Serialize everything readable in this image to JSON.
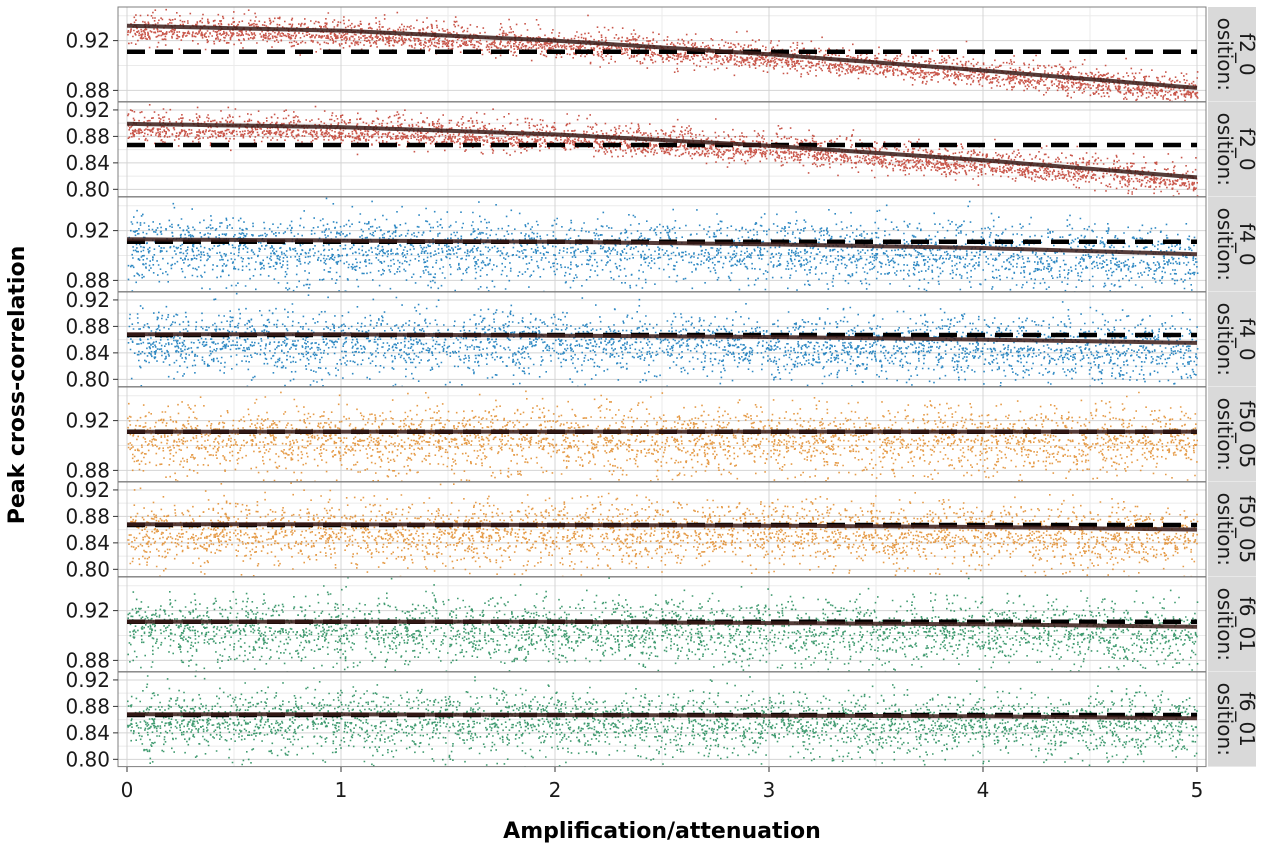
{
  "chart_data": {
    "type": "scatter",
    "xlabel": "Amplification/attenuation",
    "ylabel": "Peak cross-correlation",
    "xlim": [
      0,
      5
    ],
    "x_ticks": [
      "0",
      "1",
      "2",
      "3",
      "4",
      "5"
    ],
    "grid": true,
    "colors": {
      "red": "#c0392b",
      "blue": "#0a74b8",
      "orange": "#e08a28",
      "green": "#1e8a57"
    },
    "panels": [
      {
        "strip": "f2_0\nosition:",
        "ylim": [
          0.871,
          0.947
        ],
        "y_ticks": [
          "0.88",
          "0.92"
        ],
        "y_tick_values": [
          0.88,
          0.92
        ],
        "y_minor": [
          0.86,
          0.9,
          0.94
        ],
        "color": "red",
        "threshold": 0.911,
        "trend": [
          [
            0,
            0.932
          ],
          [
            1,
            0.928
          ],
          [
            2,
            0.92
          ],
          [
            3,
            0.909
          ],
          [
            4,
            0.896
          ],
          [
            5,
            0.882
          ]
        ],
        "spread": 0.006,
        "outlier_spread": 0.004
      },
      {
        "strip": "f2_0\nosition:",
        "ylim": [
          0.789,
          0.932
        ],
        "y_ticks": [
          "0.80",
          "0.84",
          "0.88",
          "0.92"
        ],
        "y_tick_values": [
          0.8,
          0.84,
          0.88,
          0.92
        ],
        "y_minor": [
          0.78,
          0.82,
          0.86,
          0.9,
          0.94
        ],
        "color": "red",
        "threshold": 0.867,
        "trend": [
          [
            0,
            0.899
          ],
          [
            1,
            0.894
          ],
          [
            2,
            0.883
          ],
          [
            3,
            0.866
          ],
          [
            4,
            0.844
          ],
          [
            5,
            0.818
          ]
        ],
        "spread": 0.012,
        "outlier_spread": 0.008
      },
      {
        "strip": "f4_0\nosition:",
        "ylim": [
          0.871,
          0.947
        ],
        "y_ticks": [
          "0.88",
          "0.92"
        ],
        "y_tick_values": [
          0.88,
          0.92
        ],
        "y_minor": [
          0.86,
          0.9,
          0.94
        ],
        "color": "blue",
        "threshold": 0.911,
        "trend": [
          [
            0,
            0.913
          ],
          [
            1,
            0.912
          ],
          [
            2,
            0.911
          ],
          [
            3,
            0.909
          ],
          [
            4,
            0.906
          ],
          [
            5,
            0.901
          ]
        ],
        "spread": 0.011,
        "outlier_spread": 0.018
      },
      {
        "strip": "f4_0\nosition:",
        "ylim": [
          0.789,
          0.932
        ],
        "y_ticks": [
          "0.80",
          "0.84",
          "0.88",
          "0.92"
        ],
        "y_tick_values": [
          0.8,
          0.84,
          0.88,
          0.92
        ],
        "y_minor": [
          0.78,
          0.82,
          0.86,
          0.9,
          0.94
        ],
        "color": "blue",
        "threshold": 0.867,
        "trend": [
          [
            0,
            0.868
          ],
          [
            1,
            0.868
          ],
          [
            2,
            0.866
          ],
          [
            3,
            0.864
          ],
          [
            4,
            0.86
          ],
          [
            5,
            0.855
          ]
        ],
        "spread": 0.02,
        "outlier_spread": 0.03
      },
      {
        "strip": "f50_05\nosition:",
        "ylim": [
          0.871,
          0.947
        ],
        "y_ticks": [
          "0.88",
          "0.92"
        ],
        "y_tick_values": [
          0.88,
          0.92
        ],
        "y_minor": [
          0.86,
          0.9,
          0.94
        ],
        "color": "orange",
        "threshold": 0.911,
        "trend": [
          [
            0,
            0.911
          ],
          [
            1,
            0.911
          ],
          [
            2,
            0.911
          ],
          [
            3,
            0.911
          ],
          [
            4,
            0.911
          ],
          [
            5,
            0.911
          ]
        ],
        "spread": 0.011,
        "outlier_spread": 0.018
      },
      {
        "strip": "f50_05\nosition:",
        "ylim": [
          0.789,
          0.932
        ],
        "y_ticks": [
          "0.80",
          "0.84",
          "0.88",
          "0.92"
        ],
        "y_tick_values": [
          0.8,
          0.84,
          0.88,
          0.92
        ],
        "y_minor": [
          0.78,
          0.82,
          0.86,
          0.9,
          0.94
        ],
        "color": "orange",
        "threshold": 0.867,
        "trend": [
          [
            0,
            0.868
          ],
          [
            1,
            0.868
          ],
          [
            2,
            0.867
          ],
          [
            3,
            0.866
          ],
          [
            4,
            0.864
          ],
          [
            5,
            0.86
          ]
        ],
        "spread": 0.02,
        "outlier_spread": 0.03
      },
      {
        "strip": "f6_01\nosition:",
        "ylim": [
          0.871,
          0.947
        ],
        "y_ticks": [
          "0.88",
          "0.92"
        ],
        "y_tick_values": [
          0.88,
          0.92
        ],
        "y_minor": [
          0.86,
          0.9,
          0.94
        ],
        "color": "green",
        "threshold": 0.911,
        "trend": [
          [
            0,
            0.911
          ],
          [
            1,
            0.911
          ],
          [
            2,
            0.911
          ],
          [
            3,
            0.91
          ],
          [
            4,
            0.909
          ],
          [
            5,
            0.907
          ]
        ],
        "spread": 0.011,
        "outlier_spread": 0.018
      },
      {
        "strip": "f6_01\nosition:",
        "ylim": [
          0.789,
          0.932
        ],
        "y_ticks": [
          "0.80",
          "0.84",
          "0.88",
          "0.92"
        ],
        "y_tick_values": [
          0.8,
          0.84,
          0.88,
          0.92
        ],
        "y_minor": [
          0.78,
          0.82,
          0.86,
          0.9,
          0.94
        ],
        "color": "green",
        "threshold": 0.867,
        "trend": [
          [
            0,
            0.868
          ],
          [
            1,
            0.868
          ],
          [
            2,
            0.867
          ],
          [
            3,
            0.866
          ],
          [
            4,
            0.865
          ],
          [
            5,
            0.862
          ]
        ],
        "spread": 0.02,
        "outlier_spread": 0.03
      }
    ]
  }
}
